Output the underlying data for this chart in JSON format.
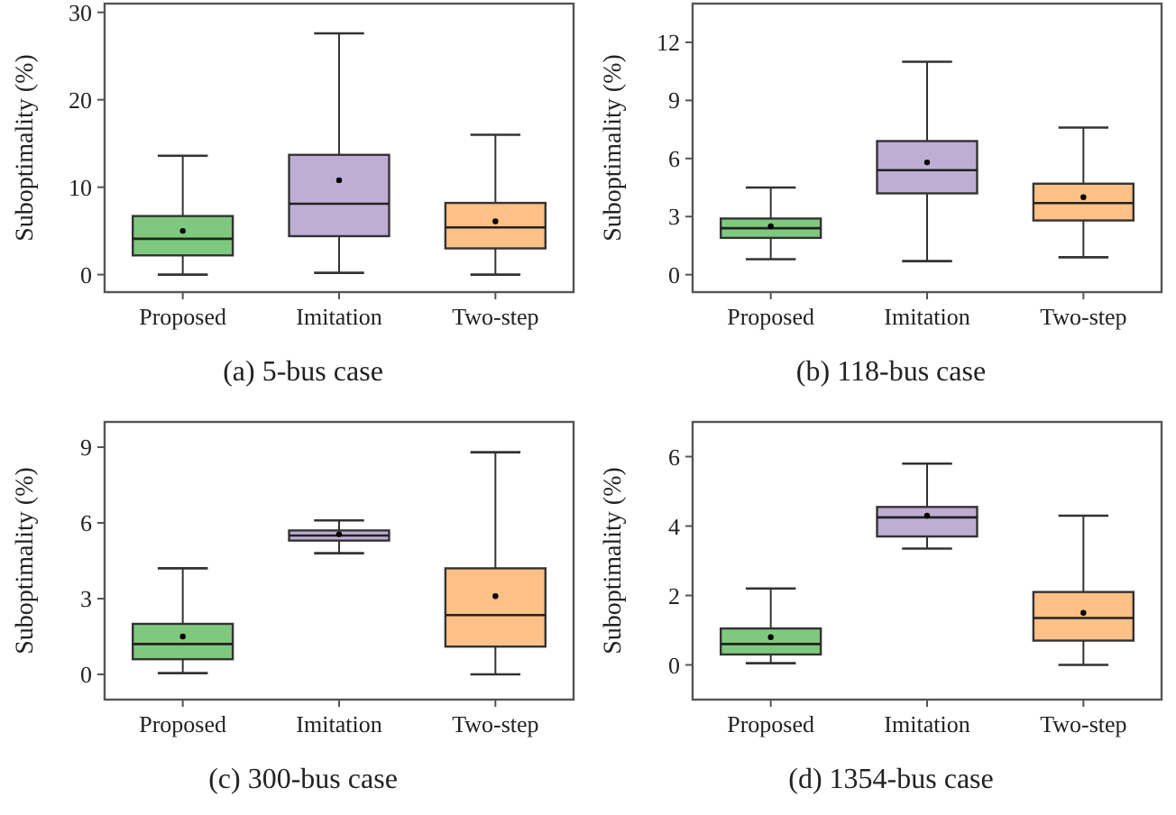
{
  "chart_data": [
    {
      "type": "box",
      "title": "(a)  5-bus case",
      "ylabel": "Suboptimality (%)",
      "categories": [
        "Proposed",
        "Imitation",
        "Two-step"
      ],
      "colors": [
        "#7fc97f",
        "#beaed4",
        "#fdc086"
      ],
      "ylim": [
        -2,
        31
      ],
      "yticks": [
        0,
        10,
        20,
        30
      ],
      "grid": false,
      "boxes": [
        {
          "low": 0,
          "q1": 2.2,
          "median": 4.1,
          "q3": 6.7,
          "high": 13.6,
          "mean": 5.0
        },
        {
          "low": 0.2,
          "q1": 4.4,
          "median": 8.1,
          "q3": 13.7,
          "high": 27.6,
          "mean": 10.8
        },
        {
          "low": 0,
          "q1": 3.0,
          "median": 5.4,
          "q3": 8.2,
          "high": 16.0,
          "mean": 6.1
        }
      ]
    },
    {
      "type": "box",
      "title": "(b)  118-bus case",
      "ylabel": "Suboptimality (%)",
      "categories": [
        "Proposed",
        "Imitation",
        "Two-step"
      ],
      "colors": [
        "#7fc97f",
        "#beaed4",
        "#fdc086"
      ],
      "ylim": [
        -0.9,
        14
      ],
      "yticks": [
        0,
        3,
        6,
        9,
        12
      ],
      "grid": false,
      "boxes": [
        {
          "low": 0.8,
          "q1": 1.9,
          "median": 2.4,
          "q3": 2.9,
          "high": 4.5,
          "mean": 2.5
        },
        {
          "low": 0.7,
          "q1": 4.2,
          "median": 5.4,
          "q3": 6.9,
          "high": 11.0,
          "mean": 5.8
        },
        {
          "low": 0.9,
          "q1": 2.8,
          "median": 3.7,
          "q3": 4.7,
          "high": 7.6,
          "mean": 4.0
        }
      ]
    },
    {
      "type": "box",
      "title": "(c)  300-bus case",
      "ylabel": "Suboptimality (%)",
      "categories": [
        "Proposed",
        "Imitation",
        "Two-step"
      ],
      "colors": [
        "#7fc97f",
        "#beaed4",
        "#fdc086"
      ],
      "ylim": [
        -1,
        10
      ],
      "yticks": [
        0,
        3,
        6,
        9
      ],
      "grid": false,
      "boxes": [
        {
          "low": 0.05,
          "q1": 0.6,
          "median": 1.2,
          "q3": 2.0,
          "high": 4.2,
          "mean": 1.5
        },
        {
          "low": 4.8,
          "q1": 5.3,
          "median": 5.5,
          "q3": 5.7,
          "high": 6.1,
          "mean": 5.55
        },
        {
          "low": 0,
          "q1": 1.1,
          "median": 2.35,
          "q3": 4.2,
          "high": 8.8,
          "mean": 3.1
        }
      ]
    },
    {
      "type": "box",
      "title": "(d)  1354-bus case",
      "ylabel": "Suboptimality (%)",
      "categories": [
        "Proposed",
        "Imitation",
        "Two-step"
      ],
      "colors": [
        "#7fc97f",
        "#beaed4",
        "#fdc086"
      ],
      "ylim": [
        -1,
        7
      ],
      "yticks": [
        0,
        2,
        4,
        6
      ],
      "grid": false,
      "boxes": [
        {
          "low": 0.05,
          "q1": 0.3,
          "median": 0.6,
          "q3": 1.05,
          "high": 2.2,
          "mean": 0.8
        },
        {
          "low": 3.35,
          "q1": 3.7,
          "median": 4.25,
          "q3": 4.55,
          "high": 5.8,
          "mean": 4.3
        },
        {
          "low": 0,
          "q1": 0.7,
          "median": 1.35,
          "q3": 2.1,
          "high": 4.3,
          "mean": 1.5
        }
      ]
    }
  ]
}
